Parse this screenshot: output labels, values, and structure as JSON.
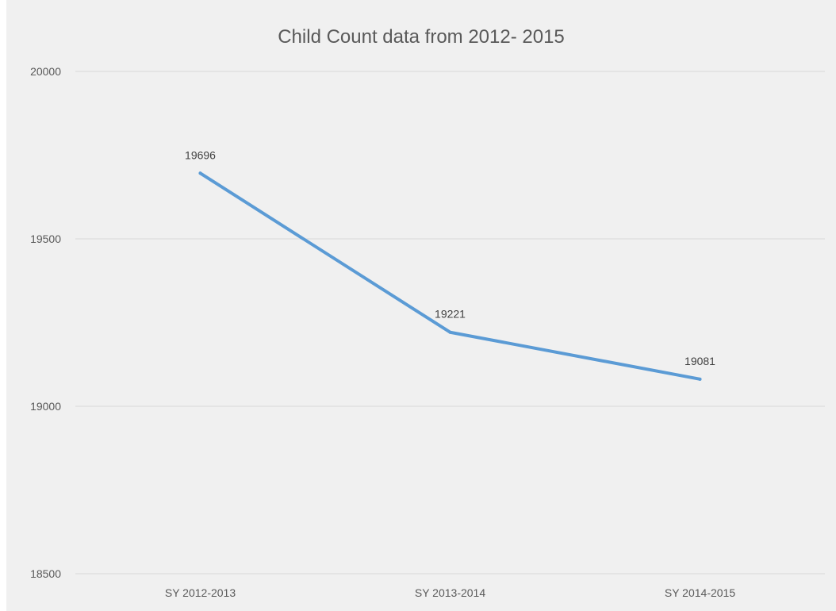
{
  "chart_data": {
    "type": "line",
    "title": "Child Count data from 2012- 2015",
    "xlabel": "",
    "ylabel": "",
    "categories": [
      "SY 2012-2013",
      "SY 2013-2014",
      "SY 2014-2015"
    ],
    "series": [
      {
        "values": [
          19696,
          19221,
          19081
        ],
        "color": "#5b9bd5"
      }
    ],
    "data_labels": [
      "19696",
      "19221",
      "19081"
    ],
    "ylim": [
      18500,
      20000
    ],
    "yticks": [
      18500,
      19000,
      19500,
      20000
    ],
    "ytick_labels": [
      "18500",
      "19000",
      "19500",
      "20000"
    ],
    "grid": true,
    "legend": "none"
  }
}
